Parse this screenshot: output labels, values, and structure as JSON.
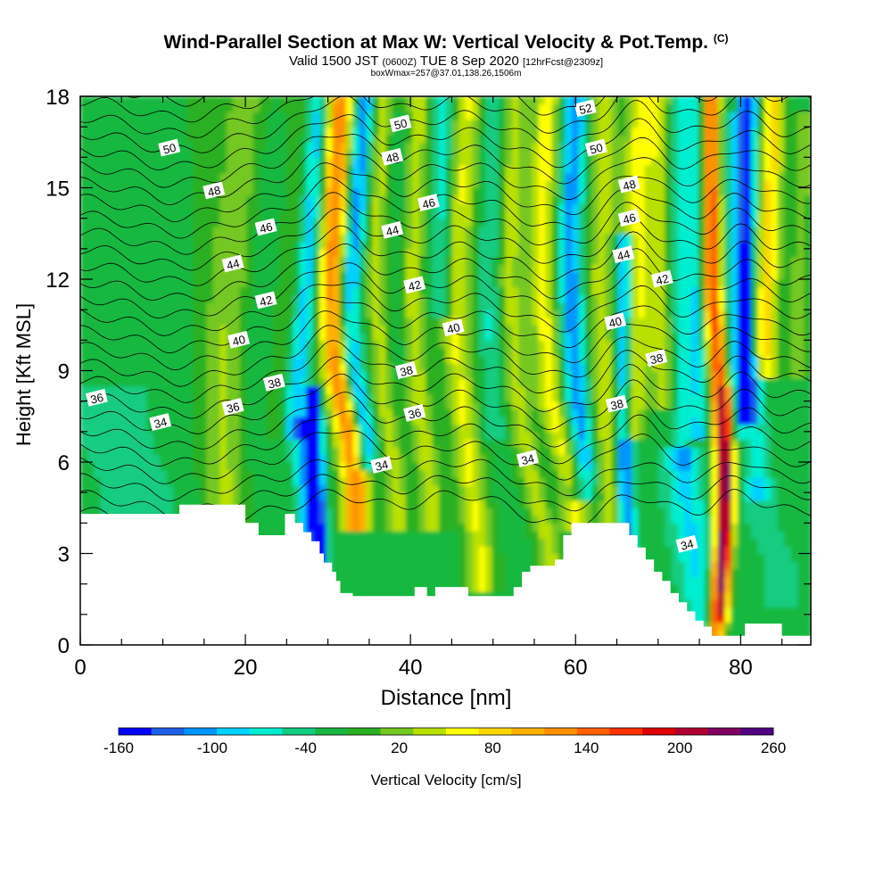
{
  "title": {
    "main": "Wind-Parallel Section at Max W: Vertical Velocity & Pot.Temp.",
    "main_mark": "(C)",
    "valid_prefix": "Valid 1500 JST",
    "valid_utc": "(0600Z)",
    "valid_date": "TUE 8 Sep 2020",
    "forecast": "[12hrFcst@2309z]",
    "sub": "boxWmax=257@37.01,138.26,1506m"
  },
  "chart_data": {
    "type": "heatmap",
    "xlabel": "Distance [nm]",
    "ylabel": "Height [Kft MSL]",
    "xlim": [
      0,
      88.5
    ],
    "ylim": [
      0,
      18
    ],
    "x_ticks": [
      0,
      20,
      40,
      60,
      80
    ],
    "y_ticks": [
      0,
      3,
      6,
      9,
      12,
      15,
      18
    ],
    "colorbar": {
      "label": "Vertical Velocity [cm/s]",
      "min": -160,
      "max": 260,
      "step": 20,
      "tick_labels": [
        "-160",
        "-100",
        "-40",
        "20",
        "80",
        "140",
        "200",
        "260"
      ],
      "colors": [
        "#0000ff",
        "#1e5fe8",
        "#0096ff",
        "#00d2ff",
        "#00eed0",
        "#12cc80",
        "#18b840",
        "#2ab020",
        "#74c820",
        "#b8e000",
        "#ffff00",
        "#ffd700",
        "#ffb000",
        "#ff9000",
        "#ff6000",
        "#ff3000",
        "#e00000",
        "#b00030",
        "#800060",
        "#500080"
      ]
    },
    "terrain_kft": [
      [
        0,
        4.3
      ],
      [
        12,
        4.3
      ],
      [
        12,
        4.6
      ],
      [
        20,
        4.6
      ],
      [
        20,
        4.0
      ],
      [
        21.6,
        4.0
      ],
      [
        21.6,
        3.6
      ],
      [
        24.8,
        3.6
      ],
      [
        24.8,
        4.3
      ],
      [
        26,
        4.3
      ],
      [
        26,
        4.0
      ],
      [
        27,
        4.0
      ],
      [
        27,
        3.7
      ],
      [
        28,
        3.7
      ],
      [
        28,
        3.4
      ],
      [
        29,
        3.4
      ],
      [
        29,
        3.0
      ],
      [
        29.5,
        3.0
      ],
      [
        29.5,
        2.7
      ],
      [
        30.5,
        2.7
      ],
      [
        30.5,
        2.4
      ],
      [
        31,
        2.4
      ],
      [
        31,
        2.1
      ],
      [
        31.5,
        2.1
      ],
      [
        31.5,
        1.7
      ],
      [
        33,
        1.7
      ],
      [
        33,
        1.6
      ],
      [
        40.5,
        1.6
      ],
      [
        40.5,
        1.9
      ],
      [
        42,
        1.9
      ],
      [
        42,
        1.6
      ],
      [
        43,
        1.6
      ],
      [
        43,
        1.9
      ],
      [
        47,
        1.9
      ],
      [
        47,
        1.6
      ],
      [
        52.5,
        1.6
      ],
      [
        52.5,
        1.9
      ],
      [
        53.5,
        1.9
      ],
      [
        53.5,
        2.4
      ],
      [
        54.5,
        2.4
      ],
      [
        54.5,
        2.6
      ],
      [
        57.5,
        2.6
      ],
      [
        57.5,
        2.8
      ],
      [
        58.5,
        2.8
      ],
      [
        58.5,
        3.6
      ],
      [
        59.5,
        3.6
      ],
      [
        59.5,
        4.0
      ],
      [
        66.5,
        4.0
      ],
      [
        66.5,
        3.6
      ],
      [
        67.5,
        3.6
      ],
      [
        67.5,
        3.2
      ],
      [
        68.5,
        3.2
      ],
      [
        68.5,
        2.8
      ],
      [
        69.5,
        2.8
      ],
      [
        69.5,
        2.4
      ],
      [
        70.5,
        2.4
      ],
      [
        70.5,
        2.1
      ],
      [
        71.5,
        2.1
      ],
      [
        71.5,
        1.7
      ],
      [
        72.5,
        1.7
      ],
      [
        72.5,
        1.4
      ],
      [
        73.5,
        1.4
      ],
      [
        73.5,
        1.1
      ],
      [
        74.5,
        1.1
      ],
      [
        74.5,
        0.8
      ],
      [
        75.5,
        0.8
      ],
      [
        75.5,
        0.6
      ],
      [
        76.5,
        0.6
      ],
      [
        76.5,
        0.3
      ],
      [
        80.5,
        0.3
      ],
      [
        80.5,
        0.7
      ],
      [
        85,
        0.7
      ],
      [
        85,
        0.3
      ],
      [
        88.5,
        0.3
      ]
    ],
    "isentropes_C": [
      34,
      36,
      38,
      40,
      42,
      44,
      46,
      48,
      50,
      52
    ],
    "contour_labels": [
      {
        "text": "36",
        "x": 2,
        "y": 8.1
      },
      {
        "text": "34",
        "x": 9.7,
        "y": 7.3
      },
      {
        "text": "50",
        "x": 10.8,
        "y": 16.3
      },
      {
        "text": "48",
        "x": 16.2,
        "y": 14.9
      },
      {
        "text": "46",
        "x": 22.5,
        "y": 13.7
      },
      {
        "text": "44",
        "x": 18.5,
        "y": 12.5
      },
      {
        "text": "42",
        "x": 22.5,
        "y": 11.3
      },
      {
        "text": "40",
        "x": 19.2,
        "y": 10.0
      },
      {
        "text": "38",
        "x": 23.5,
        "y": 8.6
      },
      {
        "text": "36",
        "x": 18.5,
        "y": 7.8
      },
      {
        "text": "50",
        "x": 38.8,
        "y": 17.1
      },
      {
        "text": "48",
        "x": 37.8,
        "y": 16.0
      },
      {
        "text": "46",
        "x": 42.2,
        "y": 14.5
      },
      {
        "text": "44",
        "x": 37.8,
        "y": 13.6
      },
      {
        "text": "42",
        "x": 40.5,
        "y": 11.8
      },
      {
        "text": "40",
        "x": 45.2,
        "y": 10.4
      },
      {
        "text": "38",
        "x": 39.5,
        "y": 9.0
      },
      {
        "text": "36",
        "x": 40.5,
        "y": 7.6
      },
      {
        "text": "34",
        "x": 36.5,
        "y": 5.9
      },
      {
        "text": "34",
        "x": 54.2,
        "y": 6.1
      },
      {
        "text": "52",
        "x": 61.2,
        "y": 17.6
      },
      {
        "text": "50",
        "x": 62.5,
        "y": 16.3
      },
      {
        "text": "48",
        "x": 66.5,
        "y": 15.1
      },
      {
        "text": "46",
        "x": 66.5,
        "y": 14.0
      },
      {
        "text": "44",
        "x": 65.8,
        "y": 12.8
      },
      {
        "text": "42",
        "x": 70.5,
        "y": 12.0
      },
      {
        "text": "40",
        "x": 64.8,
        "y": 10.6
      },
      {
        "text": "38",
        "x": 69.8,
        "y": 9.4
      },
      {
        "text": "38",
        "x": 65,
        "y": 7.9
      },
      {
        "text": "34",
        "x": 73.5,
        "y": 3.3
      }
    ]
  }
}
